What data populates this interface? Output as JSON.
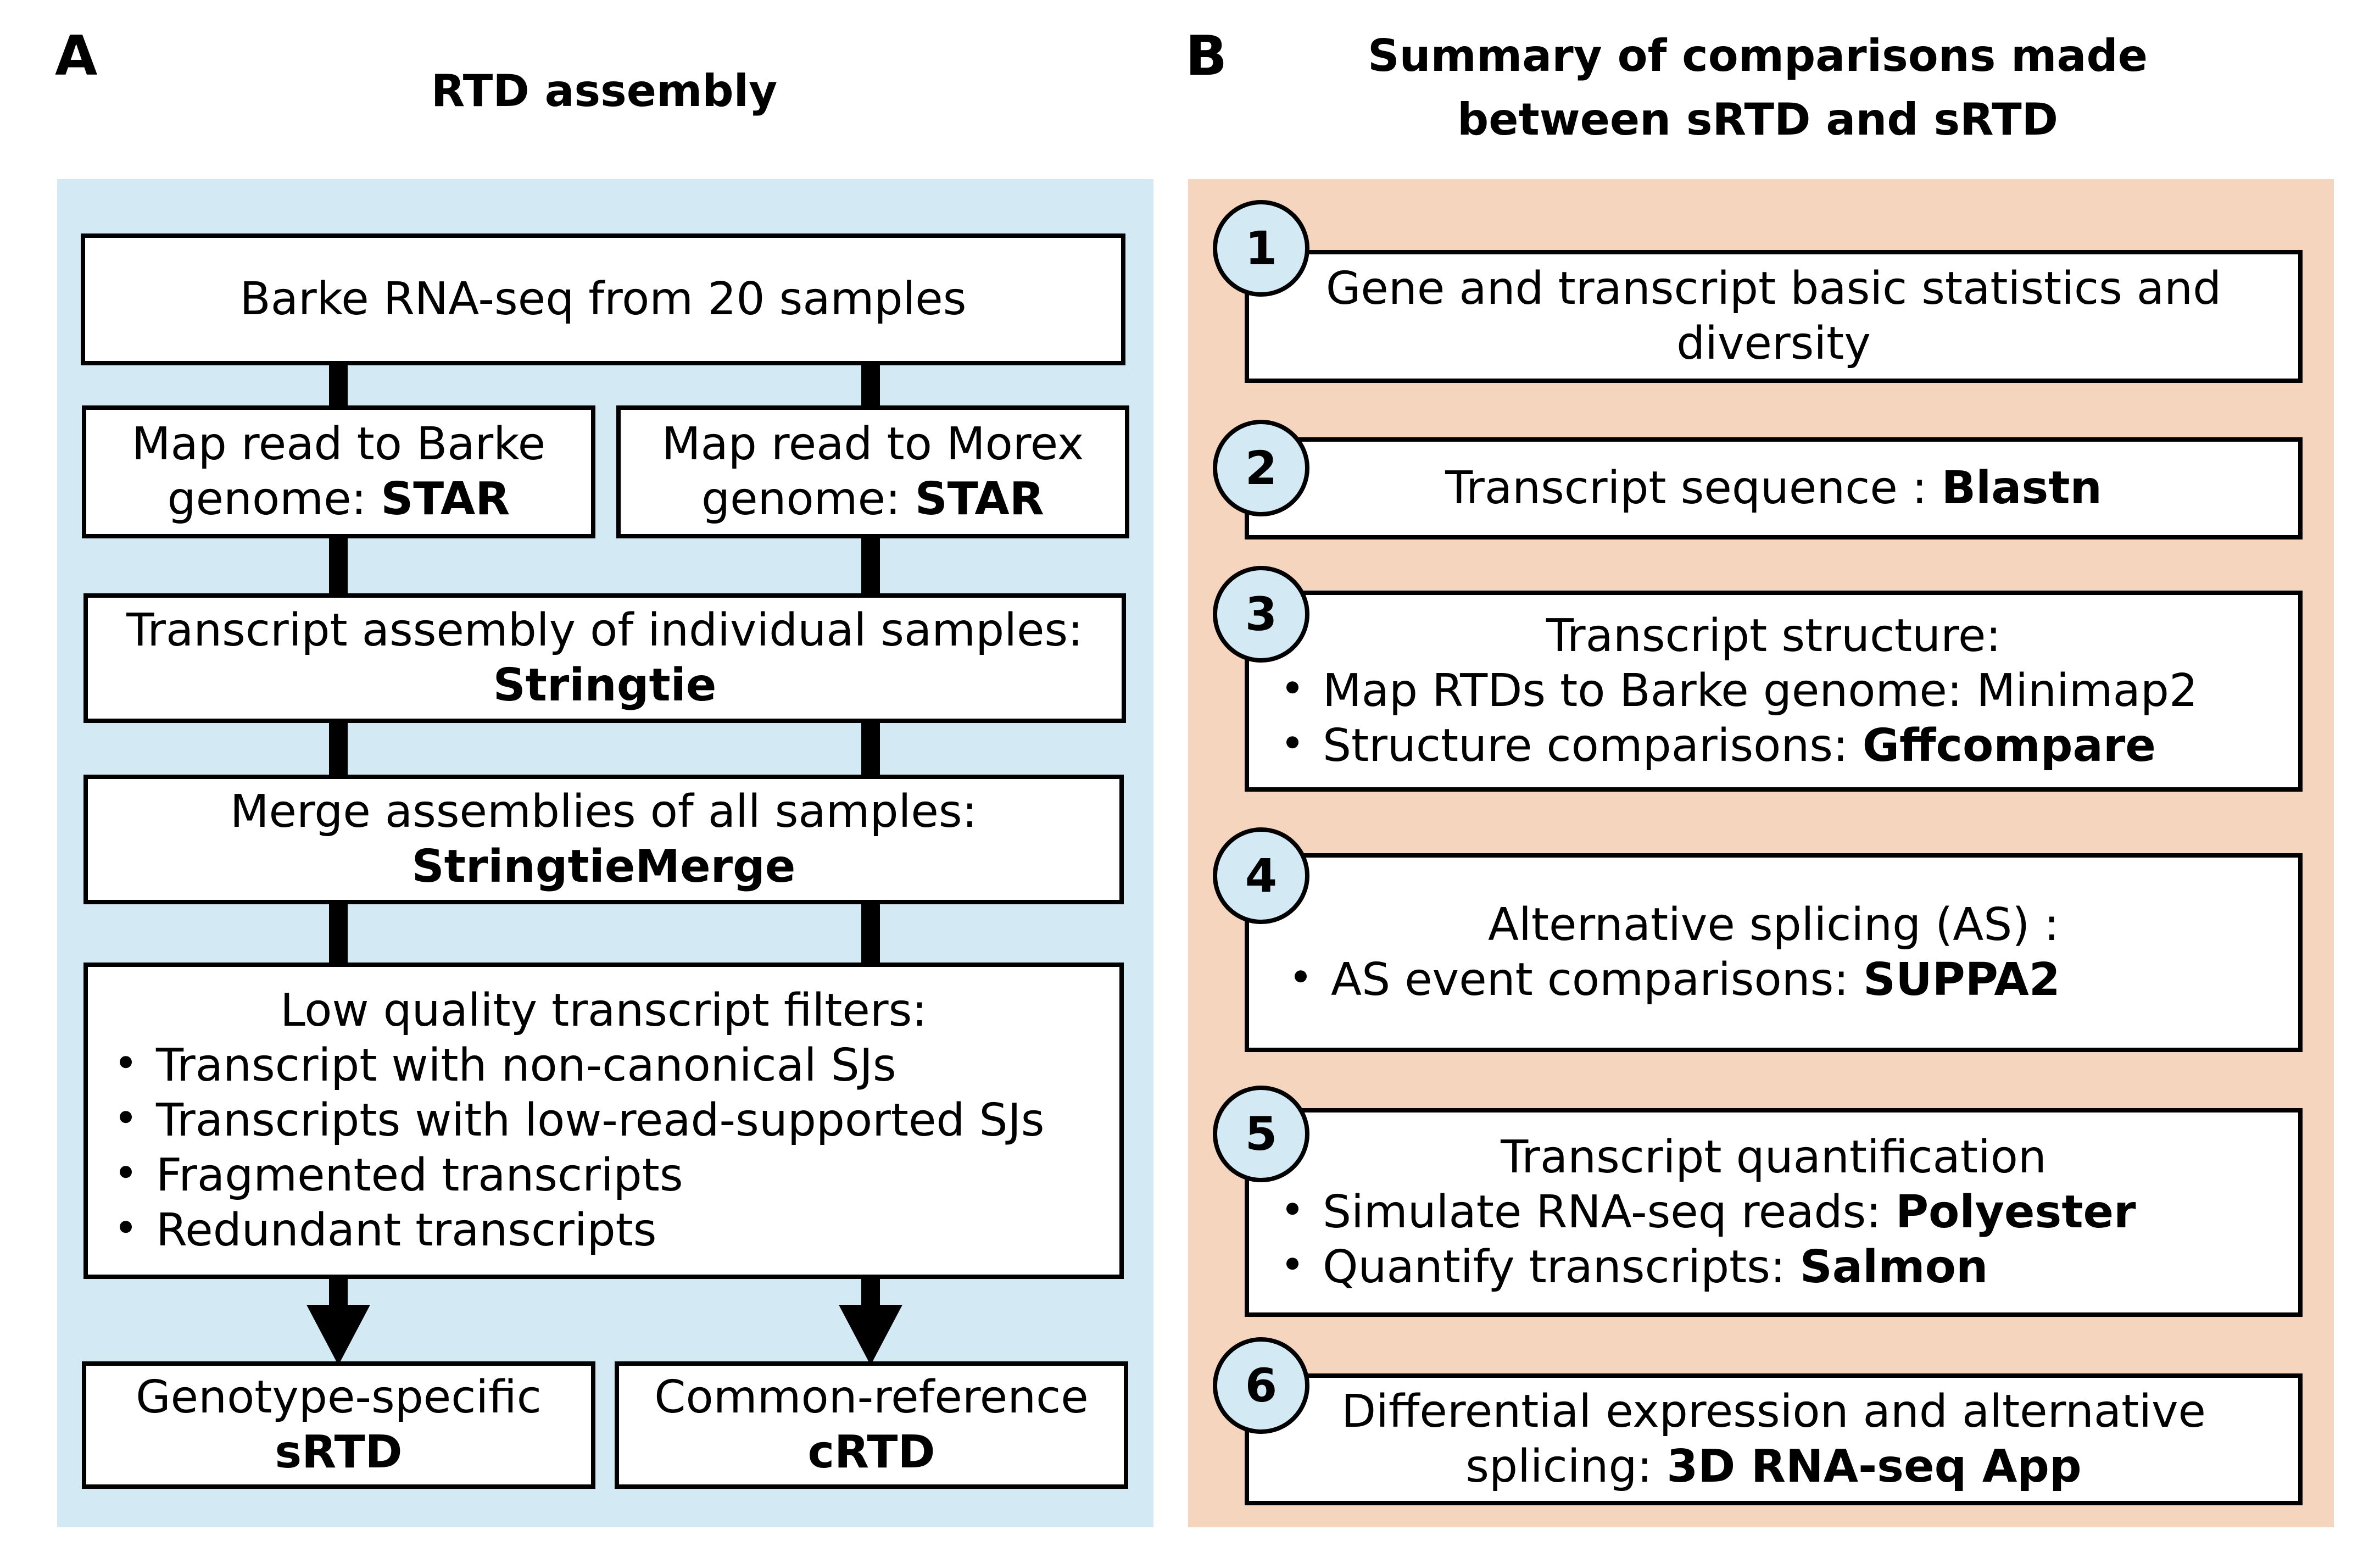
{
  "panel_a": {
    "letter": "A",
    "title": "RTD assembly",
    "boxes": {
      "input": {
        "line1": "Barke RNA-seq from 20 samples"
      },
      "map_barke": {
        "line1": "Map read to Barke",
        "line2_prefix": "genome: ",
        "line2_bold": "STAR"
      },
      "map_morex": {
        "line1": "Map read to Morex",
        "line2_prefix": "genome: ",
        "line2_bold": "STAR"
      },
      "assembly": {
        "line1": "Transcript assembly of individual samples:",
        "line2_bold": "Stringtie"
      },
      "merge": {
        "line1": "Merge assemblies of all samples:",
        "line2_bold": "StringtieMerge"
      },
      "filters": {
        "title": "Low quality transcript filters:",
        "items": [
          "Transcript with non-canonical SJs",
          "Transcripts with low-read-supported SJs",
          "Fragmented transcripts",
          "Redundant transcripts"
        ]
      },
      "srtd": {
        "line1": "Genotype-specific",
        "line2_bold": "sRTD"
      },
      "crtd": {
        "line1": "Common-reference",
        "line2_bold": "cRTD"
      }
    },
    "colors": {
      "background": "#d3e9f4"
    }
  },
  "panel_b": {
    "letter": "B",
    "title_line1": "Summary of comparisons made",
    "title_line2": "between sRTD and sRTD",
    "colors": {
      "background": "#f5d5bd",
      "circle": "#d3e9f4"
    },
    "items": [
      {
        "num": "1",
        "line1": "Gene and transcript basic statistics and",
        "line2": "diversity"
      },
      {
        "num": "2",
        "text": "Transcript sequence : ",
        "bold": "Blastn"
      },
      {
        "num": "3",
        "title": "Transcript structure:",
        "bullet1": "Map RTDs to Barke genome: Minimap2",
        "bullet2_prefix": "Structure comparisons: ",
        "bullet2_bold": "Gffcompare"
      },
      {
        "num": "4",
        "title": "Alternative splicing (AS) :",
        "bullet1_prefix": "AS event comparisons: ",
        "bullet1_bold": "SUPPA2"
      },
      {
        "num": "5",
        "title": "Transcript quantification",
        "bullet1_prefix": "Simulate RNA-seq reads: ",
        "bullet1_bold": "Polyester",
        "bullet2_prefix": "Quantify transcripts: ",
        "bullet2_bold": "Salmon"
      },
      {
        "num": "6",
        "line1": "Differential expression and alternative",
        "line2_prefix": "splicing: ",
        "line2_bold": "3D RNA-seq App"
      }
    ]
  }
}
